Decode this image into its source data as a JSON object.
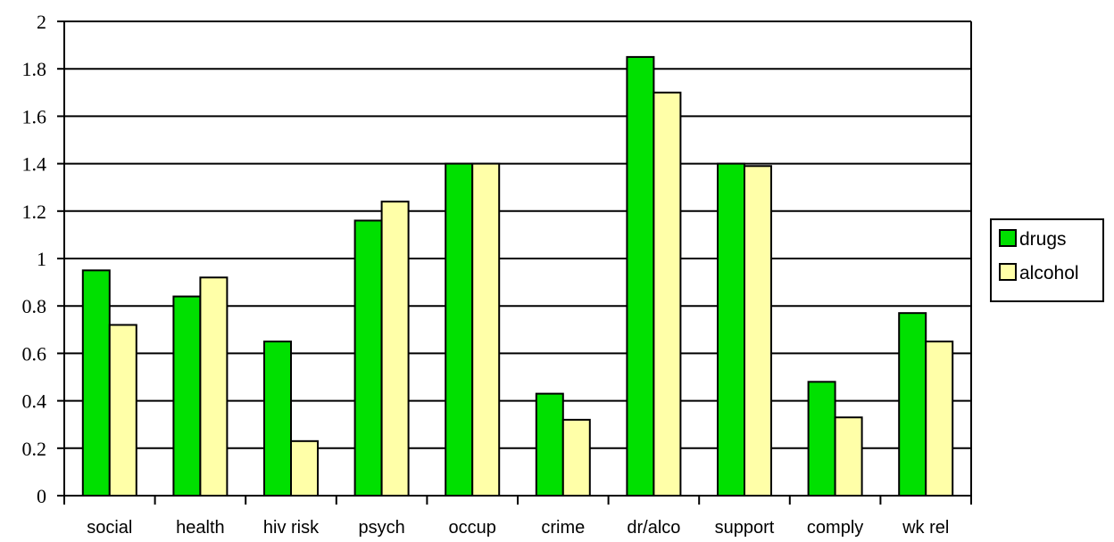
{
  "chart_data": {
    "type": "bar",
    "title": "",
    "xlabel": "",
    "ylabel": "",
    "categories": [
      "social",
      "health",
      "hiv risk",
      "psych",
      "occup",
      "crime",
      "dr/alco",
      "support",
      "comply",
      "wk rel"
    ],
    "series": [
      {
        "name": "drugs",
        "color": "#00e000",
        "values": [
          0.95,
          0.84,
          0.65,
          1.16,
          1.4,
          0.43,
          1.85,
          1.4,
          0.48,
          0.77
        ]
      },
      {
        "name": "alcohol",
        "color": "#ffffa8",
        "values": [
          0.72,
          0.92,
          0.23,
          1.24,
          1.4,
          0.32,
          1.7,
          1.39,
          0.33,
          0.65
        ]
      }
    ],
    "ylim": [
      0,
      2
    ],
    "yticks": [
      "0",
      "0.2",
      "0.4",
      "0.6",
      "0.8",
      "1",
      "1.2",
      "1.4",
      "1.6",
      "1.8",
      "2"
    ],
    "grid": true,
    "legend_position": "right"
  }
}
